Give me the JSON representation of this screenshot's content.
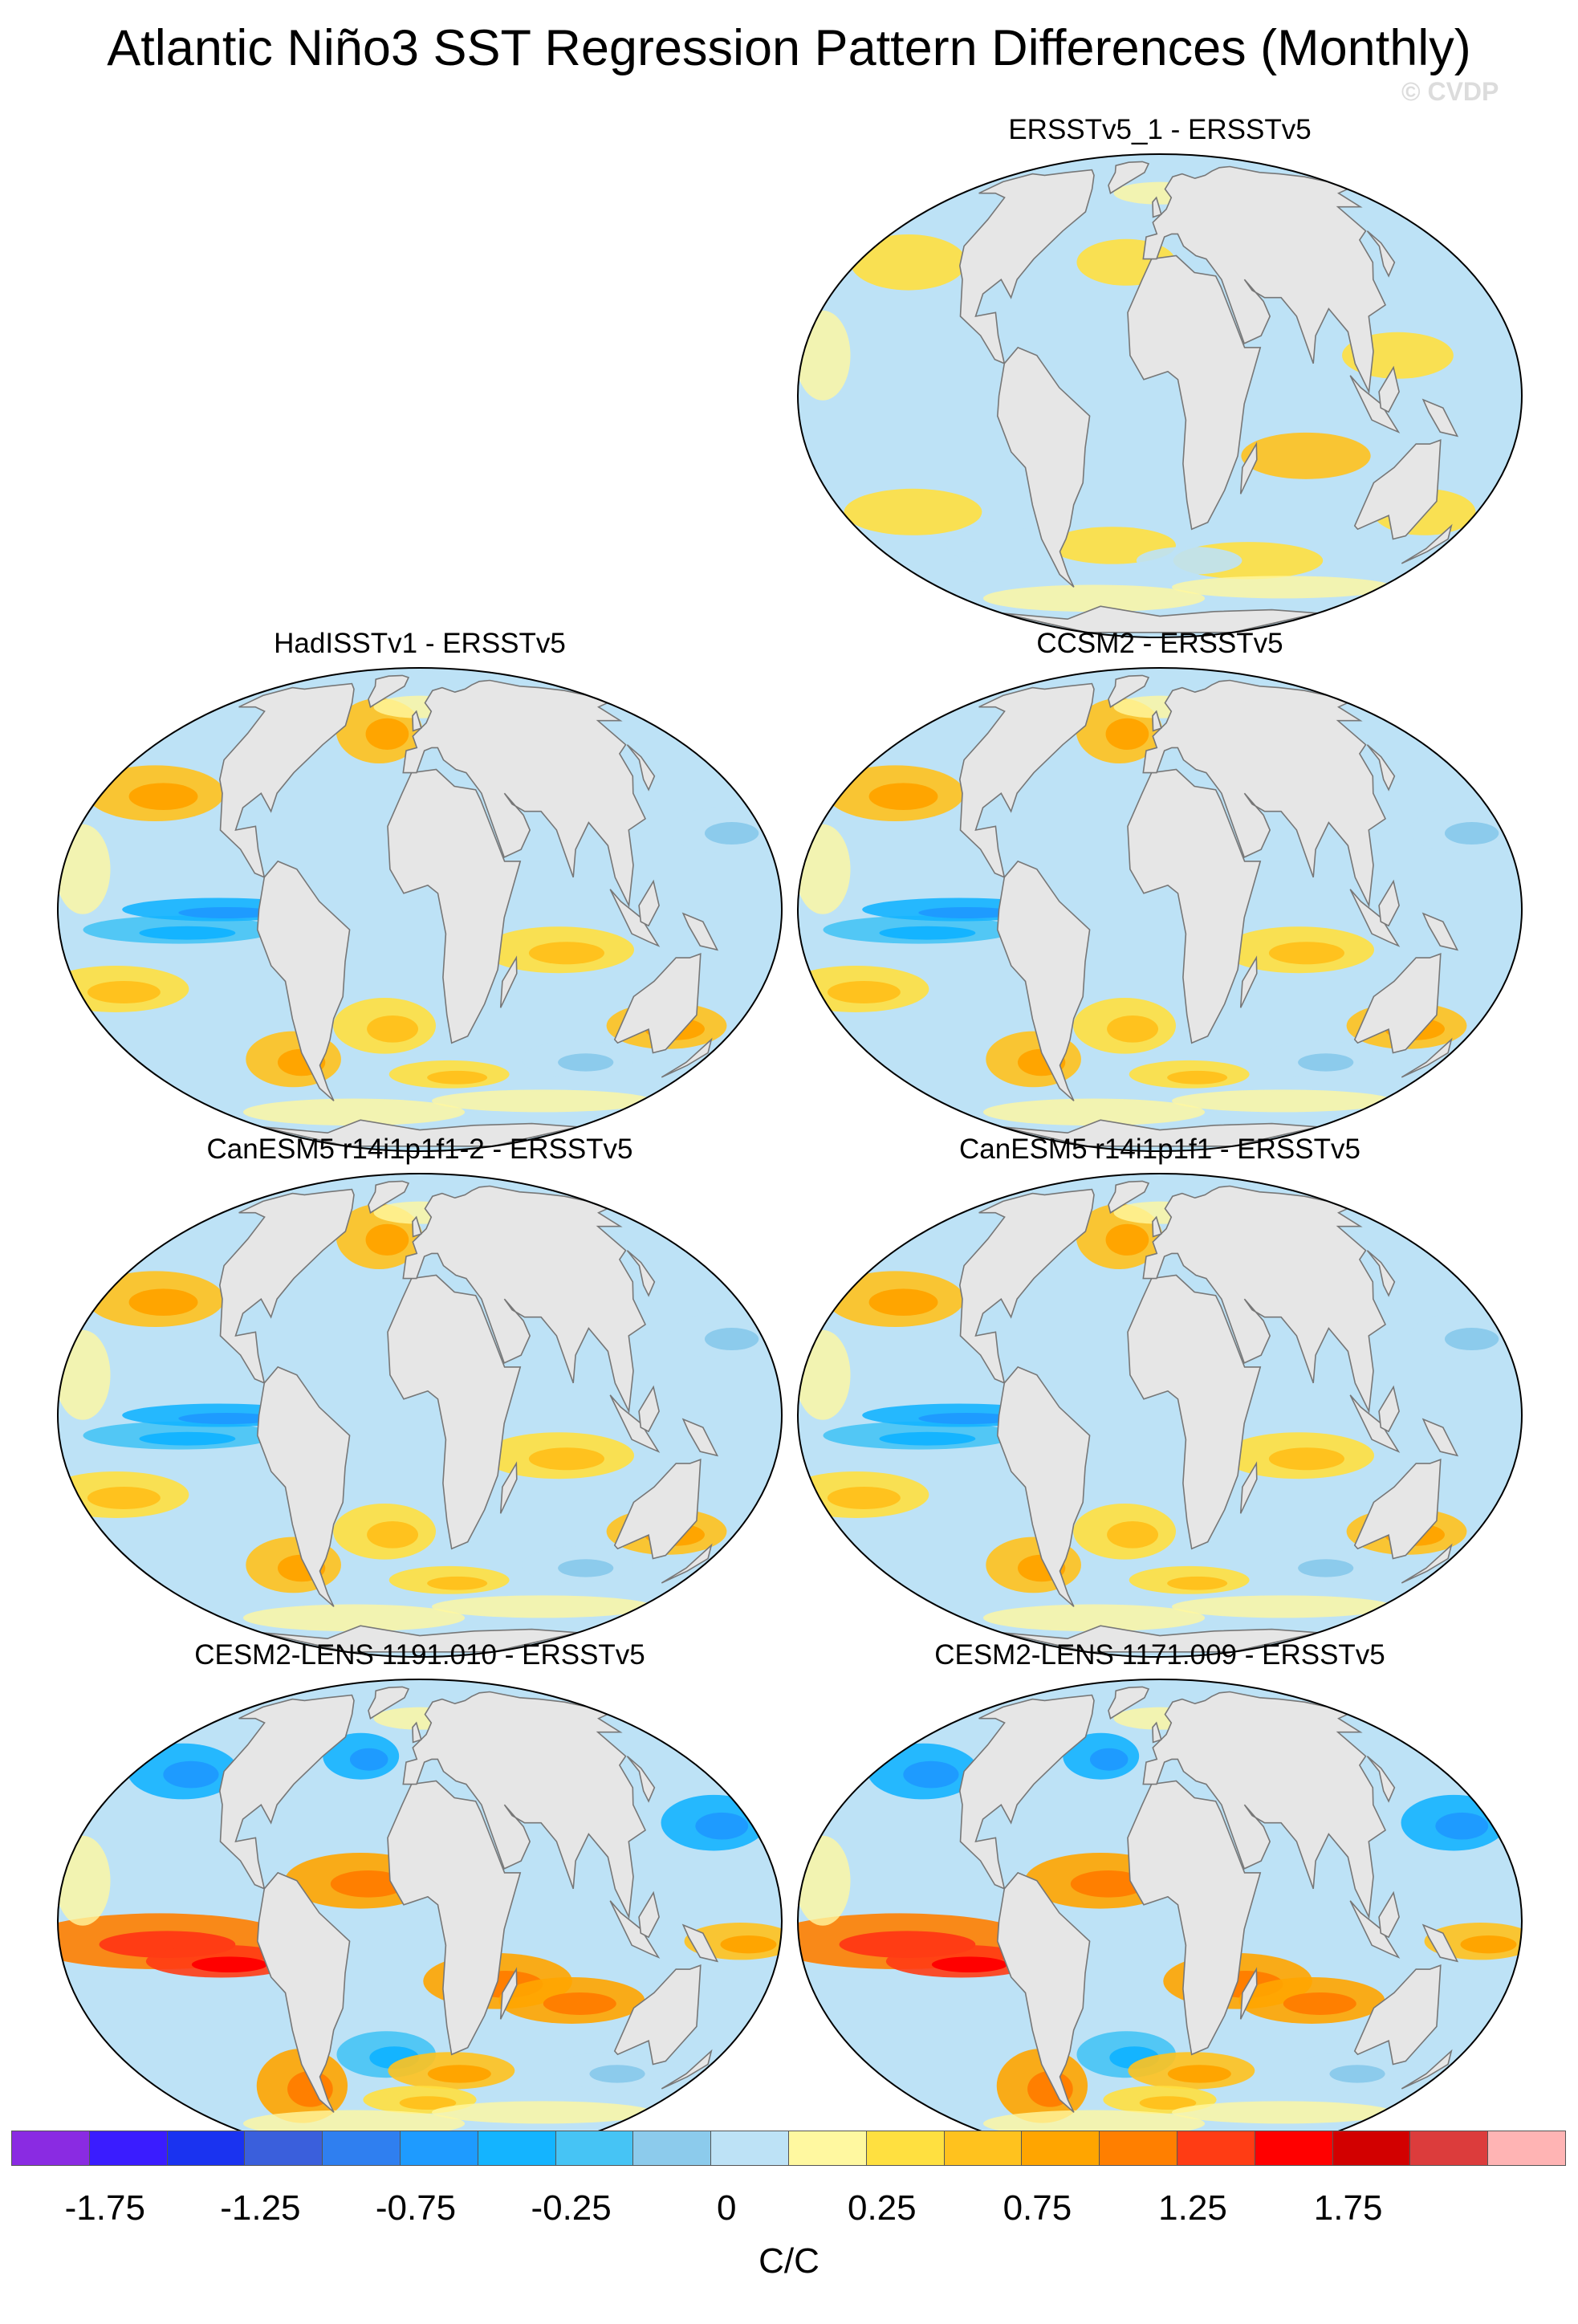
{
  "title": "Atlantic Niño3 SST Regression Pattern Differences (Monthly)",
  "copyright": "© CVDP",
  "panels": [
    {
      "title": "ERSSTv5_1 - ERSSTv5",
      "style": "weak"
    },
    {
      "title": "HadISSTv1 - ERSSTv5",
      "style": "mixed"
    },
    {
      "title": "CCSM2 - ERSSTv5",
      "style": "mixed"
    },
    {
      "title": "CanESM5 r14i1p1f1-2 - ERSSTv5",
      "style": "mixed"
    },
    {
      "title": "CanESM5 r14i1p1f1 - ERSSTv5",
      "style": "mixed"
    },
    {
      "title": "CESM2-LENS 1191.010 - ERSSTv5",
      "style": "strong"
    },
    {
      "title": "CESM2-LENS 1171.009 - ERSSTv5",
      "style": "strong"
    }
  ],
  "colorbar": {
    "colors": [
      "#8a2be2",
      "#3a1cff",
      "#1a33f0",
      "#3a5fdc",
      "#2f7ff0",
      "#1e9bff",
      "#14b4ff",
      "#46c4f5",
      "#8ccbec",
      "#bde2f6",
      "#fff8a0",
      "#ffe040",
      "#ffc21e",
      "#ffa500",
      "#ff7f00",
      "#ff3c14",
      "#ff0000",
      "#d20000",
      "#dc3c3c",
      "#ffb4b4"
    ],
    "labels": [
      "-1.75",
      "-1.25",
      "-0.75",
      "-0.25",
      "0",
      "0.25",
      "0.75",
      "1.25",
      "1.75"
    ],
    "units": "C/C"
  },
  "map_colors": {
    "ocean": "#bde2f6",
    "land": "#e6e6e6"
  }
}
